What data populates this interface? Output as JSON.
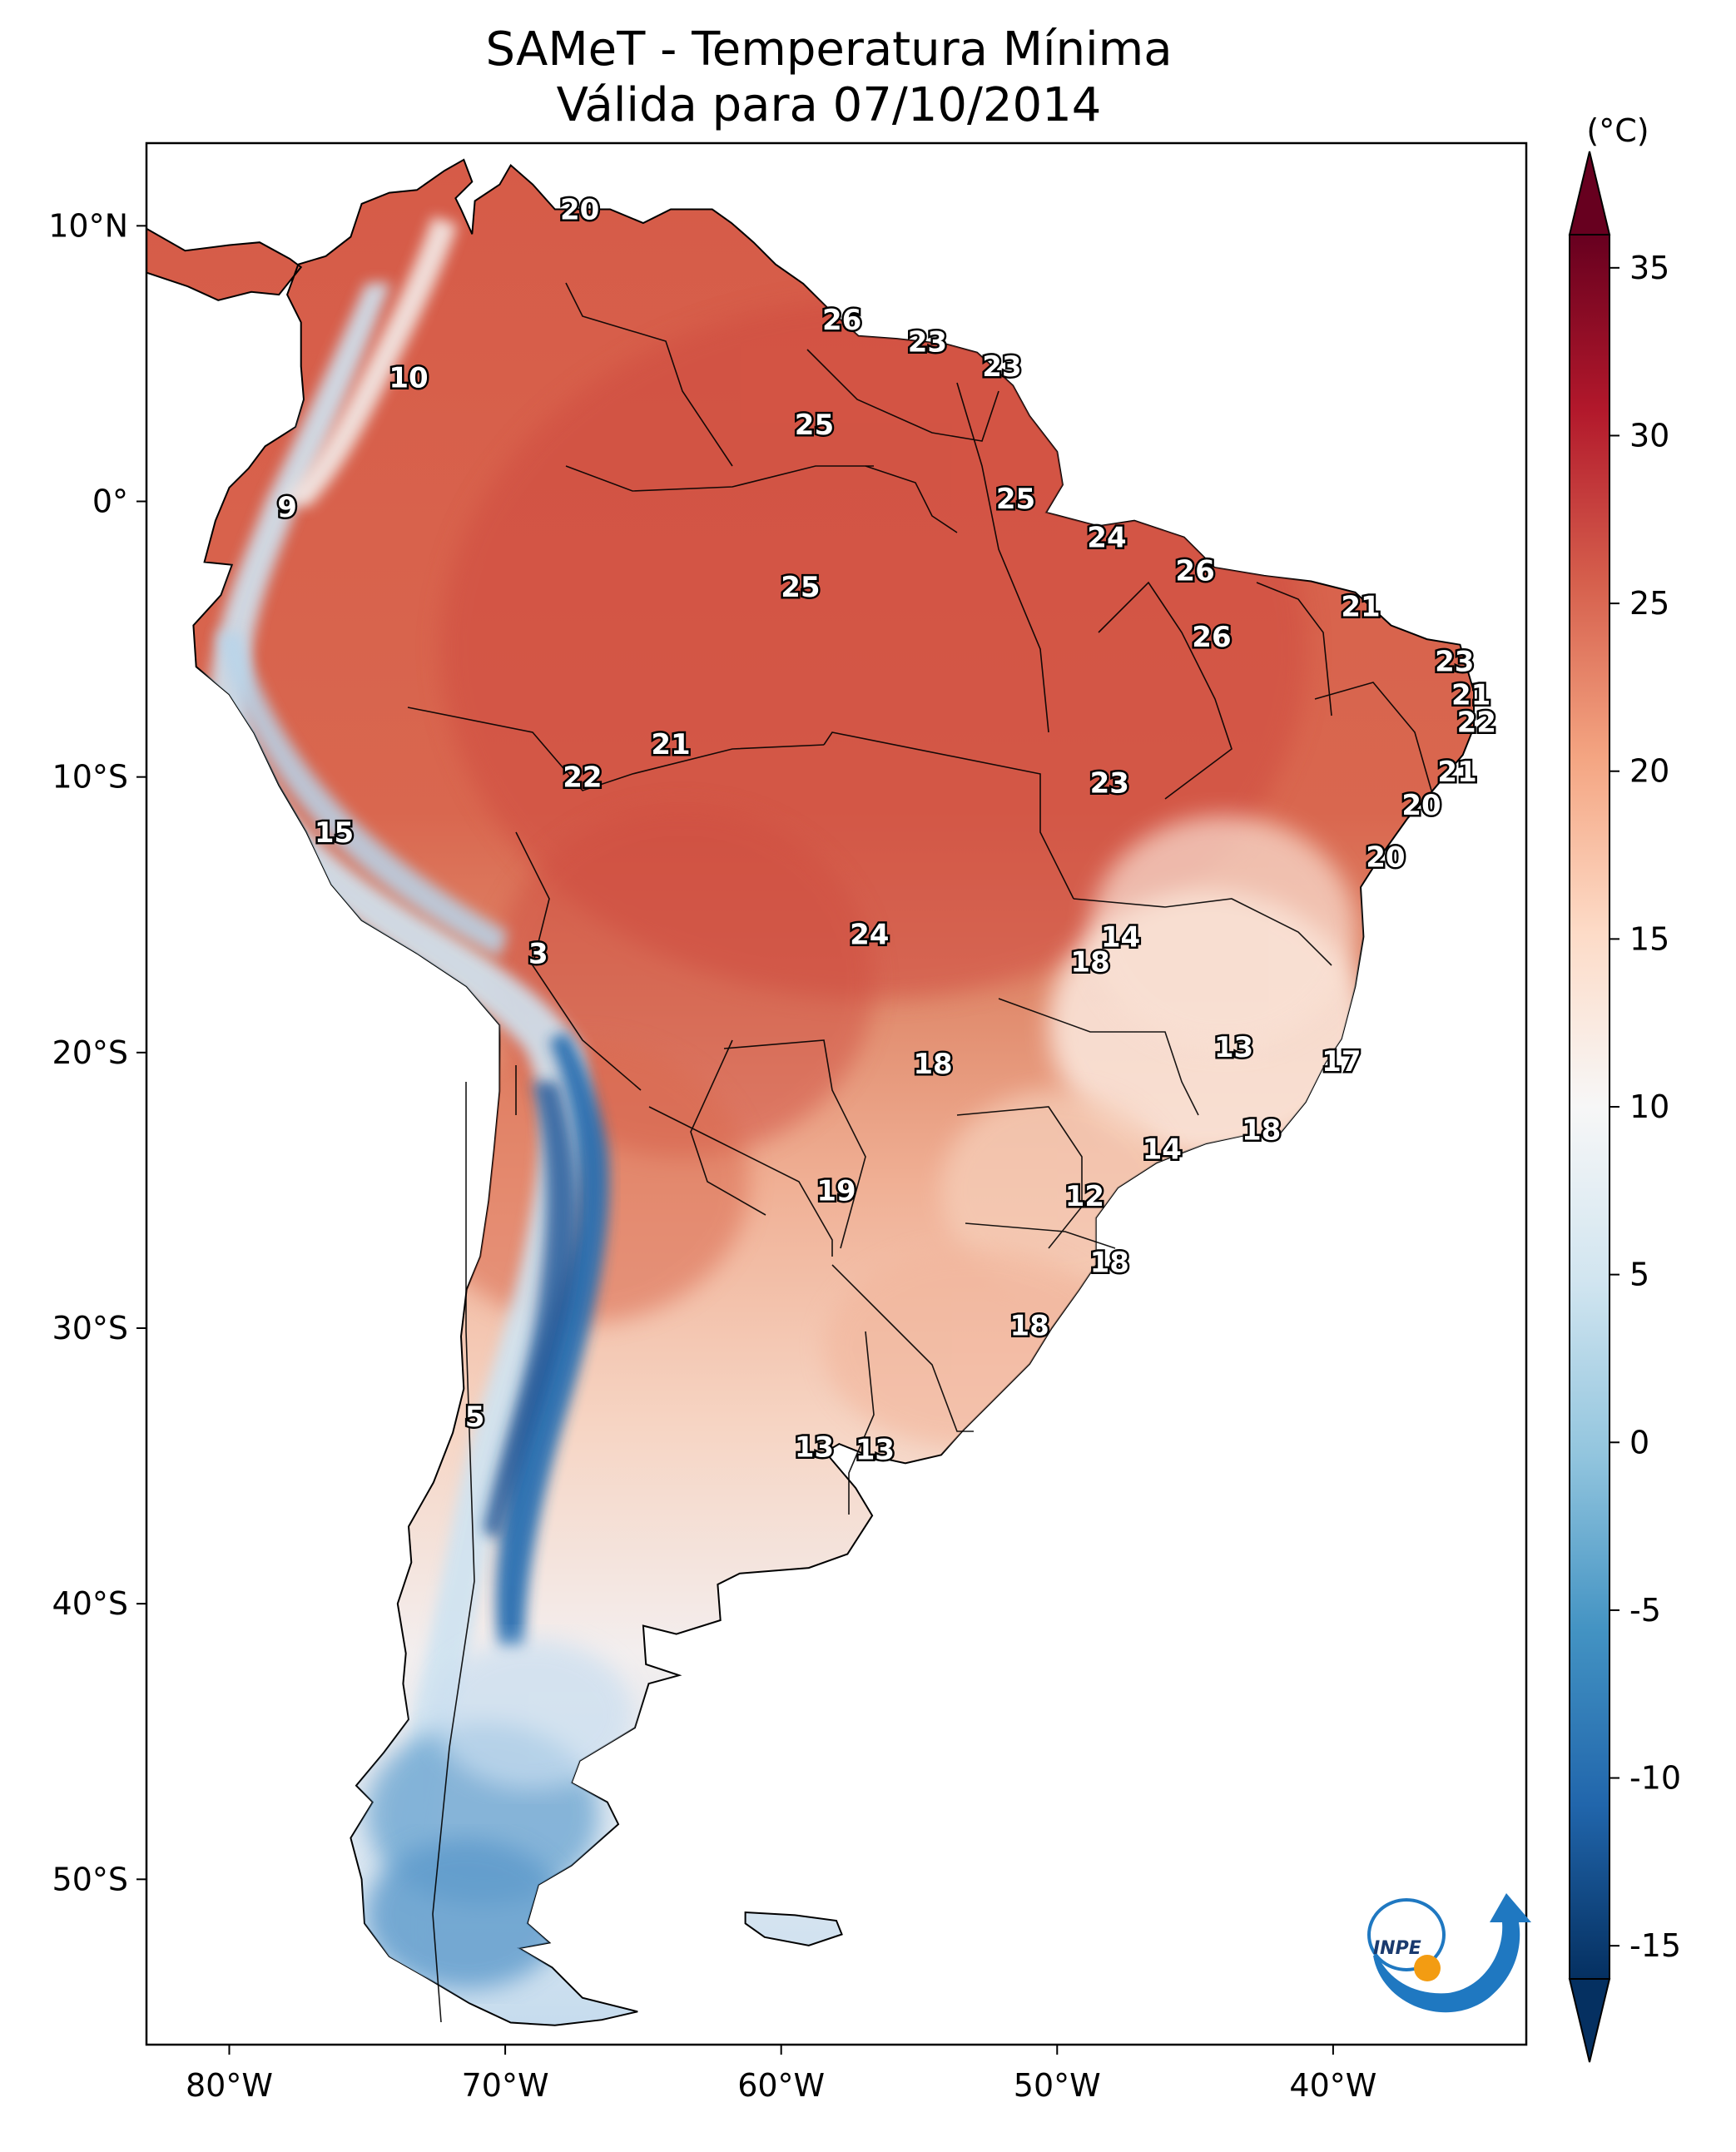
{
  "title": {
    "line1": "SAMeT - Temperatura Mínima",
    "line2": "Válida para 07/10/2014"
  },
  "map": {
    "lon_range": [
      -83,
      -33
    ],
    "lat_range": [
      -56,
      13
    ],
    "lon_ticks": [
      {
        "value": -80,
        "label": "80°W"
      },
      {
        "value": -70,
        "label": "70°W"
      },
      {
        "value": -60,
        "label": "60°W"
      },
      {
        "value": -50,
        "label": "50°W"
      },
      {
        "value": -40,
        "label": "40°W"
      }
    ],
    "lat_ticks": [
      {
        "value": 10,
        "label": "10°N"
      },
      {
        "value": 0,
        "label": "0°"
      },
      {
        "value": -10,
        "label": "10°S"
      },
      {
        "value": -20,
        "label": "20°S"
      },
      {
        "value": -30,
        "label": "30°S"
      },
      {
        "value": -40,
        "label": "40°S"
      },
      {
        "value": -50,
        "label": "50°S"
      }
    ],
    "labels": [
      {
        "lon": -67.3,
        "lat": 10.6,
        "text": "20"
      },
      {
        "lon": -57.8,
        "lat": 6.6,
        "text": "26"
      },
      {
        "lon": -54.7,
        "lat": 5.8,
        "text": "23"
      },
      {
        "lon": -52.0,
        "lat": 4.9,
        "text": "23"
      },
      {
        "lon": -73.5,
        "lat": 4.5,
        "text": "10"
      },
      {
        "lon": -58.8,
        "lat": 2.8,
        "text": "25"
      },
      {
        "lon": -51.5,
        "lat": 0.1,
        "text": "25"
      },
      {
        "lon": -77.9,
        "lat": -0.2,
        "text": "9"
      },
      {
        "lon": -48.2,
        "lat": -1.3,
        "text": "24"
      },
      {
        "lon": -45.0,
        "lat": -2.5,
        "text": "26"
      },
      {
        "lon": -59.3,
        "lat": -3.1,
        "text": "25"
      },
      {
        "lon": -39.0,
        "lat": -3.8,
        "text": "21"
      },
      {
        "lon": -44.4,
        "lat": -4.9,
        "text": "26"
      },
      {
        "lon": -35.6,
        "lat": -5.8,
        "text": "23"
      },
      {
        "lon": -35.0,
        "lat": -7.0,
        "text": "21"
      },
      {
        "lon": -34.8,
        "lat": -8.0,
        "text": "22"
      },
      {
        "lon": -64.0,
        "lat": -8.8,
        "text": "21"
      },
      {
        "lon": -35.5,
        "lat": -9.8,
        "text": "21"
      },
      {
        "lon": -67.2,
        "lat": -10.0,
        "text": "22"
      },
      {
        "lon": -48.1,
        "lat": -10.2,
        "text": "23"
      },
      {
        "lon": -36.8,
        "lat": -11.0,
        "text": "20"
      },
      {
        "lon": -76.2,
        "lat": -12.0,
        "text": "15"
      },
      {
        "lon": -38.1,
        "lat": -12.9,
        "text": "20"
      },
      {
        "lon": -47.7,
        "lat": -15.8,
        "text": "14"
      },
      {
        "lon": -56.8,
        "lat": -15.7,
        "text": "24"
      },
      {
        "lon": -48.8,
        "lat": -16.7,
        "text": "18"
      },
      {
        "lon": -68.8,
        "lat": -16.4,
        "text": "3"
      },
      {
        "lon": -43.6,
        "lat": -19.8,
        "text": "13"
      },
      {
        "lon": -39.7,
        "lat": -20.3,
        "text": "17"
      },
      {
        "lon": -54.5,
        "lat": -20.4,
        "text": "18"
      },
      {
        "lon": -42.6,
        "lat": -22.8,
        "text": "18"
      },
      {
        "lon": -46.2,
        "lat": -23.5,
        "text": "14"
      },
      {
        "lon": -58.0,
        "lat": -25.0,
        "text": "19"
      },
      {
        "lon": -49.0,
        "lat": -25.2,
        "text": "12"
      },
      {
        "lon": -48.1,
        "lat": -27.6,
        "text": "18"
      },
      {
        "lon": -51.0,
        "lat": -29.9,
        "text": "18"
      },
      {
        "lon": -71.1,
        "lat": -33.2,
        "text": "5"
      },
      {
        "lon": -58.8,
        "lat": -34.3,
        "text": "13"
      },
      {
        "lon": -56.6,
        "lat": -34.4,
        "text": "13"
      }
    ]
  },
  "colorbar": {
    "unit": "(°C)",
    "min": -15,
    "max": 35,
    "ticks": [
      {
        "value": 35,
        "label": "35"
      },
      {
        "value": 30,
        "label": "30"
      },
      {
        "value": 25,
        "label": "25"
      },
      {
        "value": 20,
        "label": "20"
      },
      {
        "value": 15,
        "label": "15"
      },
      {
        "value": 10,
        "label": "10"
      },
      {
        "value": 5,
        "label": "5"
      },
      {
        "value": 0,
        "label": "0"
      },
      {
        "value": -5,
        "label": "-5"
      },
      {
        "value": -10,
        "label": "-10"
      },
      {
        "value": -15,
        "label": "-15"
      }
    ],
    "colors": [
      "#053061",
      "#2166ac",
      "#4393c3",
      "#92c5de",
      "#d1e5f0",
      "#f7f7f7",
      "#fddbc7",
      "#f4a582",
      "#d6604d",
      "#b2182b",
      "#67001f"
    ]
  },
  "logo": {
    "text": "INPE"
  },
  "colors": {
    "land_warm": "#d9654f",
    "land_hot": "#c9453a",
    "land_mild": "#f2b69b",
    "land_cool": "#f4e8e2",
    "andes_cold": "#3d85c6",
    "andes_cool": "#c5ddef",
    "logo_blue": "#1f78c1",
    "logo_orange": "#f39c12"
  }
}
